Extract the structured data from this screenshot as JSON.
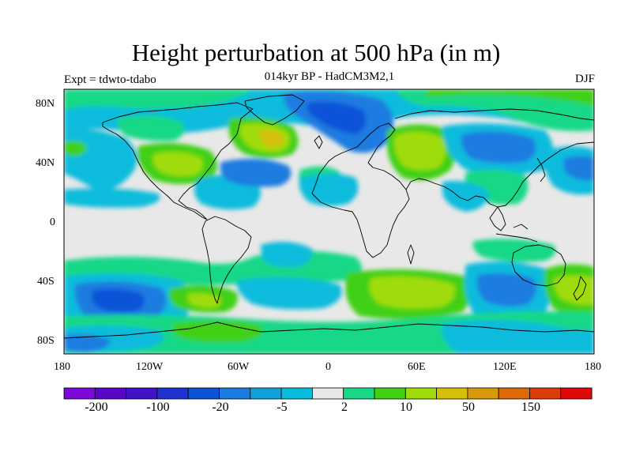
{
  "header": {
    "title": "Height perturbation at 500 hPa (in m)",
    "subtitle": "014kyr BP - HadCM3M2,1",
    "experiment": "Expt = tdwto-tdabo",
    "season": "DJF"
  },
  "axes": {
    "lat_ticks": [
      "80N",
      "40N",
      "0",
      "40S",
      "80S"
    ],
    "lon_ticks": [
      "180",
      "120W",
      "60W",
      "0",
      "60E",
      "120E",
      "180"
    ]
  },
  "colorbar": {
    "colors": [
      "#7a0ad9",
      "#5a06c8",
      "#4012c8",
      "#2032d2",
      "#0c52d8",
      "#1a7ce0",
      "#12a0da",
      "#08bcdc",
      "#e8e8e8",
      "#18d886",
      "#40d012",
      "#a0dc0a",
      "#d4c008",
      "#d89a08",
      "#dc6a08",
      "#dc3c08",
      "#e00808"
    ],
    "labels": [
      "-200",
      "-100",
      "-20",
      "-5",
      "2",
      "10",
      "50",
      "150"
    ]
  },
  "map": {
    "background_color": "#e8e8e8",
    "coastline_color": "#000000"
  }
}
